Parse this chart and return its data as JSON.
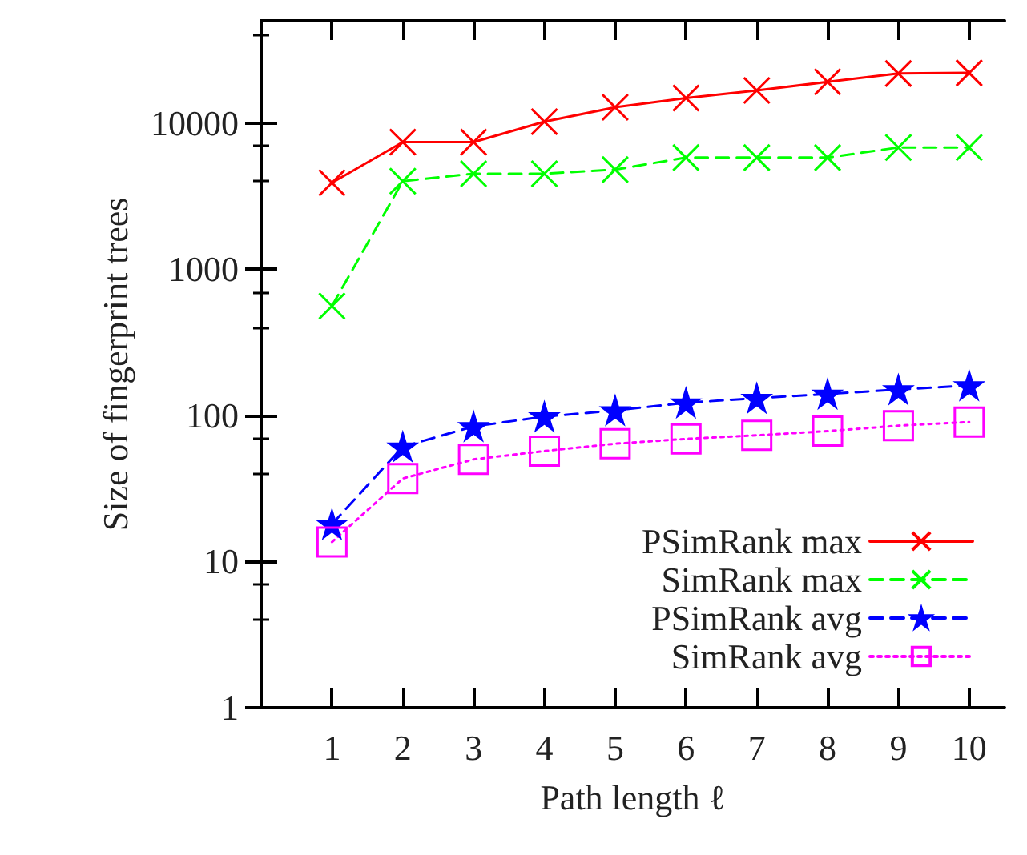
{
  "chart_data": {
    "type": "line",
    "xlabel": "Path length ℓ",
    "ylabel": "Size of fingerprint trees",
    "x": [
      1,
      2,
      3,
      4,
      5,
      6,
      7,
      8,
      9,
      10
    ],
    "series": [
      {
        "name": "PSimRank max",
        "color": "#ff0000",
        "marker": "cross",
        "line_style": "solid",
        "values": [
          3900,
          7400,
          7400,
          10200,
          12800,
          14800,
          16700,
          19100,
          21800,
          22000
        ]
      },
      {
        "name": "SimRank max",
        "color": "#00ff00",
        "marker": "cross",
        "line_style": "dashed",
        "values": [
          560,
          4000,
          4500,
          4500,
          4800,
          5800,
          5800,
          5800,
          6800,
          6800
        ]
      },
      {
        "name": "PSimRank avg",
        "color": "#0000ff",
        "marker": "star",
        "line_style": "dashed",
        "values": [
          18,
          61,
          84,
          98,
          108,
          122,
          131,
          140,
          150,
          160
        ]
      },
      {
        "name": "SimRank avg",
        "color": "#ff00ff",
        "marker": "square",
        "line_style": "dotted",
        "values": [
          13.6,
          37,
          50,
          57,
          64,
          69,
          73,
          78,
          85,
          90
        ]
      }
    ],
    "log": "y",
    "xlim": [
      0,
      10.5
    ],
    "xticks": [
      1,
      2,
      3,
      4,
      5,
      6,
      7,
      8,
      9,
      10
    ],
    "ylim": [
      1,
      50000
    ],
    "yticks": [
      1,
      10,
      100,
      1000,
      10000
    ],
    "grid": false,
    "legend": "bottom right"
  }
}
